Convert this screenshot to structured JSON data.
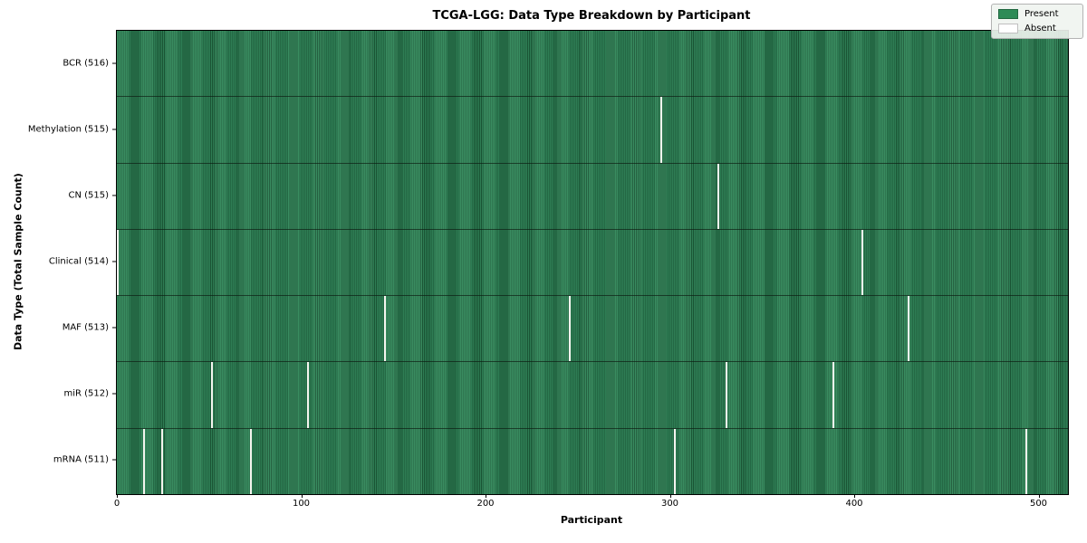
{
  "figure": {
    "title": "TCGA-LGG: Data Type Breakdown by Participant",
    "xlabel": "Participant",
    "ylabel": "Data Type (Total Sample Count)"
  },
  "legend": {
    "items": [
      {
        "label": "Present",
        "color": "#2e8b57"
      },
      {
        "label": "Absent",
        "color": "#ffffff"
      }
    ]
  },
  "chart_data": {
    "type": "heatmap",
    "title": "TCGA-LGG: Data Type Breakdown by Participant",
    "xlabel": "Participant",
    "ylabel": "Data Type (Total Sample Count)",
    "x_ticks": [
      0,
      100,
      200,
      300,
      400,
      500
    ],
    "x_range": [
      0,
      516
    ],
    "total_participants": 516,
    "grid": false,
    "legend_position": "upper right",
    "colors": {
      "present": "#2e8b57",
      "absent": "#ffffff"
    },
    "rows": [
      {
        "label": "BCR (516)",
        "data_type": "BCR",
        "present_count": 516,
        "absent_participants": []
      },
      {
        "label": "Methylation (515)",
        "data_type": "Methylation",
        "present_count": 515,
        "absent_participants": [
          295
        ]
      },
      {
        "label": "CN (515)",
        "data_type": "CN",
        "present_count": 515,
        "absent_participants": [
          326
        ]
      },
      {
        "label": "Clinical (514)",
        "data_type": "Clinical",
        "present_count": 514,
        "absent_participants": [
          0,
          404
        ]
      },
      {
        "label": "MAF (513)",
        "data_type": "MAF",
        "present_count": 513,
        "absent_participants": [
          145,
          245,
          429
        ]
      },
      {
        "label": "miR (512)",
        "data_type": "miR",
        "present_count": 512,
        "absent_participants": [
          51,
          103,
          330,
          388
        ]
      },
      {
        "label": "mRNA (511)",
        "data_type": "mRNA",
        "present_count": 511,
        "absent_participants": [
          14,
          24,
          72,
          302,
          493
        ]
      }
    ]
  }
}
